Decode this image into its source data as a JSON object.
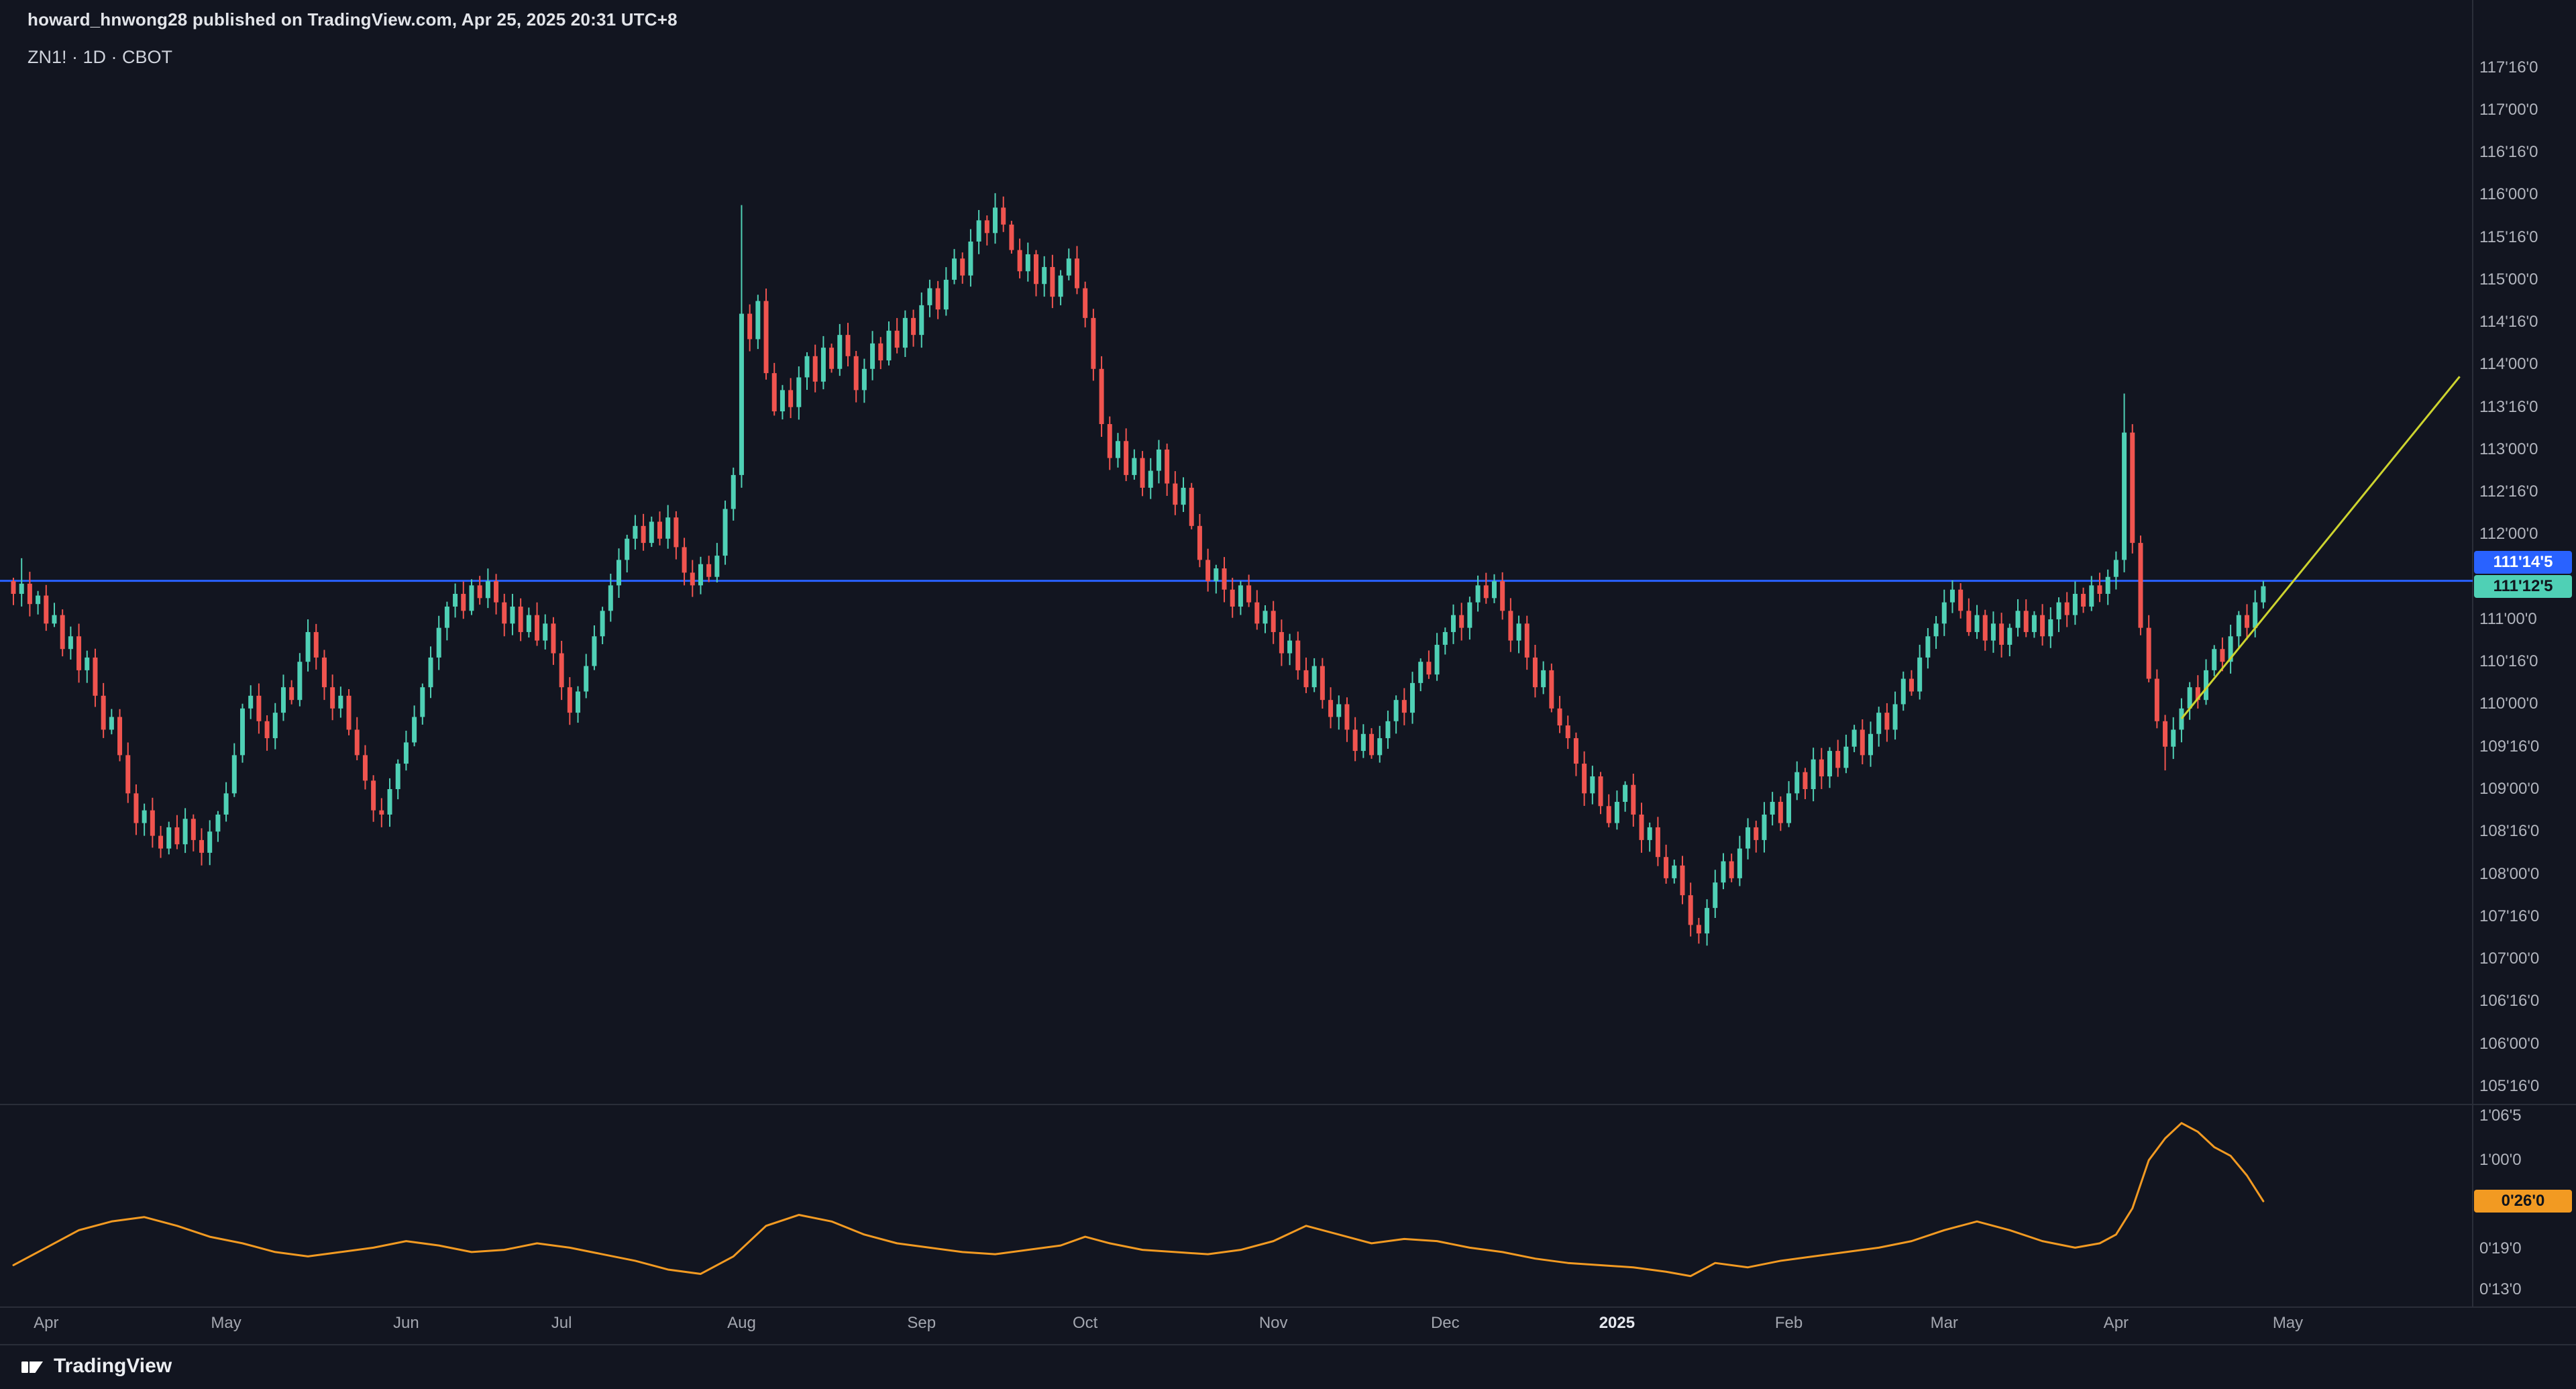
{
  "header": {
    "publish_line": "howard_hnwong28 published on TradingView.com, Apr 25, 2025 20:31 UTC+8",
    "symbol_line": "ZN1! · 1D · CBOT"
  },
  "footer": {
    "brand": "TradingView"
  },
  "colors": {
    "background": "#121520",
    "up": "#4fd0b5",
    "down": "#f0544f",
    "hline_blue": "#2962ff",
    "trend_yellow": "#cdd42f",
    "indicator_orange": "#f29a22",
    "separator": "#2a2e39",
    "axis_text": "#b2b5be",
    "chip_blue_text": "#ffffff",
    "chip_dark_text": "#10141c"
  },
  "price_axis": {
    "labels": [
      {
        "text": "117'16'0",
        "price": 117.5
      },
      {
        "text": "117'00'0",
        "price": 117.0
      },
      {
        "text": "116'16'0",
        "price": 116.5
      },
      {
        "text": "116'00'0",
        "price": 116.0
      },
      {
        "text": "115'16'0",
        "price": 115.5
      },
      {
        "text": "115'00'0",
        "price": 115.0
      },
      {
        "text": "114'16'0",
        "price": 114.5
      },
      {
        "text": "114'00'0",
        "price": 114.0
      },
      {
        "text": "113'16'0",
        "price": 113.5
      },
      {
        "text": "113'00'0",
        "price": 113.0
      },
      {
        "text": "112'16'0",
        "price": 112.5
      },
      {
        "text": "112'00'0",
        "price": 112.0
      },
      {
        "text": "111'00'0",
        "price": 111.0
      },
      {
        "text": "110'16'0",
        "price": 110.5
      },
      {
        "text": "110'00'0",
        "price": 110.0
      },
      {
        "text": "109'16'0",
        "price": 109.5
      },
      {
        "text": "109'00'0",
        "price": 109.0
      },
      {
        "text": "108'16'0",
        "price": 108.5
      },
      {
        "text": "108'00'0",
        "price": 108.0
      },
      {
        "text": "107'16'0",
        "price": 107.5
      },
      {
        "text": "107'00'0",
        "price": 107.0
      },
      {
        "text": "106'16'0",
        "price": 106.5
      },
      {
        "text": "106'00'0",
        "price": 106.0
      },
      {
        "text": "105'16'0",
        "price": 105.5
      }
    ]
  },
  "indicator_axis": {
    "labels": [
      {
        "text": "1'06'5",
        "value": 1.2031
      },
      {
        "text": "1'00'0",
        "value": 1.0
      },
      {
        "text": "0'19'0",
        "value": 0.5938
      },
      {
        "text": "0'13'0",
        "value": 0.4063
      }
    ]
  },
  "time_axis": {
    "labels": [
      {
        "text": "Apr",
        "index": 4,
        "emphasis": false
      },
      {
        "text": "May",
        "index": 26,
        "emphasis": false
      },
      {
        "text": "Jun",
        "index": 48,
        "emphasis": false
      },
      {
        "text": "Jul",
        "index": 67,
        "emphasis": false
      },
      {
        "text": "Aug",
        "index": 89,
        "emphasis": false
      },
      {
        "text": "Sep",
        "index": 111,
        "emphasis": false
      },
      {
        "text": "Oct",
        "index": 131,
        "emphasis": false
      },
      {
        "text": "Nov",
        "index": 154,
        "emphasis": false
      },
      {
        "text": "Dec",
        "index": 175,
        "emphasis": false
      },
      {
        "text": "2025",
        "index": 196,
        "emphasis": true
      },
      {
        "text": "Feb",
        "index": 217,
        "emphasis": false
      },
      {
        "text": "Mar",
        "index": 236,
        "emphasis": false
      },
      {
        "text": "Apr",
        "index": 257,
        "emphasis": false
      },
      {
        "text": "May",
        "index": 278,
        "emphasis": false
      }
    ]
  },
  "chart_data": {
    "type": "candlestick",
    "symbol": "ZN1!",
    "interval": "1D",
    "exchange": "CBOT",
    "main": {
      "ylim": [
        105.285,
        117.75
      ],
      "first_open": 111.45,
      "closes": [
        111.3,
        111.42,
        111.18,
        111.28,
        110.95,
        111.05,
        110.65,
        110.8,
        110.4,
        110.55,
        110.1,
        109.7,
        109.85,
        109.4,
        108.95,
        108.6,
        108.75,
        108.45,
        108.3,
        108.55,
        108.35,
        108.65,
        108.4,
        108.25,
        108.5,
        108.7,
        108.95,
        109.4,
        109.95,
        110.1,
        109.8,
        109.6,
        109.9,
        110.2,
        110.05,
        110.5,
        110.85,
        110.55,
        110.2,
        109.95,
        110.1,
        109.7,
        109.4,
        109.1,
        108.75,
        108.7,
        109.0,
        109.3,
        109.55,
        109.85,
        110.2,
        110.55,
        110.9,
        111.15,
        111.3,
        111.1,
        111.4,
        111.25,
        111.45,
        111.2,
        110.95,
        111.15,
        110.85,
        111.05,
        110.75,
        110.95,
        110.6,
        110.2,
        109.9,
        110.15,
        110.45,
        110.8,
        111.1,
        111.4,
        111.7,
        111.95,
        112.1,
        111.9,
        112.15,
        111.95,
        112.2,
        111.85,
        111.55,
        111.4,
        111.65,
        111.5,
        111.75,
        112.3,
        112.7,
        114.6,
        114.3,
        114.75,
        113.9,
        113.45,
        113.7,
        113.5,
        113.85,
        114.1,
        113.8,
        114.2,
        113.95,
        114.35,
        114.1,
        113.7,
        113.95,
        114.25,
        114.05,
        114.4,
        114.2,
        114.55,
        114.35,
        114.7,
        114.9,
        114.65,
        115.0,
        115.25,
        115.05,
        115.45,
        115.7,
        115.55,
        115.85,
        115.65,
        115.35,
        115.1,
        115.3,
        114.95,
        115.15,
        114.8,
        115.05,
        115.25,
        114.9,
        114.55,
        113.95,
        113.3,
        112.9,
        113.1,
        112.7,
        112.9,
        112.55,
        112.75,
        113.0,
        112.6,
        112.35,
        112.55,
        112.1,
        111.7,
        111.45,
        111.6,
        111.35,
        111.15,
        111.4,
        111.2,
        110.95,
        111.1,
        110.85,
        110.6,
        110.75,
        110.4,
        110.2,
        110.45,
        110.05,
        109.85,
        110.0,
        109.7,
        109.45,
        109.65,
        109.4,
        109.6,
        109.8,
        110.05,
        109.9,
        110.25,
        110.5,
        110.35,
        110.7,
        110.85,
        111.05,
        110.9,
        111.2,
        111.4,
        111.25,
        111.45,
        111.1,
        110.75,
        110.95,
        110.55,
        110.2,
        110.4,
        109.95,
        109.75,
        109.6,
        109.3,
        108.95,
        109.15,
        108.8,
        108.6,
        108.85,
        109.05,
        108.7,
        108.4,
        108.55,
        108.2,
        107.95,
        108.1,
        107.75,
        107.4,
        107.3,
        107.6,
        107.9,
        108.15,
        107.95,
        108.3,
        108.55,
        108.4,
        108.7,
        108.85,
        108.6,
        108.95,
        109.2,
        109.0,
        109.35,
        109.15,
        109.45,
        109.25,
        109.5,
        109.7,
        109.4,
        109.65,
        109.9,
        109.7,
        110.0,
        110.3,
        110.15,
        110.55,
        110.8,
        110.95,
        111.2,
        111.35,
        111.1,
        110.85,
        111.05,
        110.75,
        110.95,
        110.7,
        110.9,
        111.1,
        110.85,
        111.05,
        110.8,
        111.0,
        111.2,
        111.05,
        111.3,
        111.15,
        111.4,
        111.3,
        111.5,
        111.7,
        113.2,
        111.9,
        110.9,
        110.3,
        109.8,
        109.5,
        109.7,
        109.95,
        110.2,
        110.05,
        110.4,
        110.65,
        110.5,
        110.8,
        111.05,
        110.9,
        111.2,
        111.39
      ],
      "wick_overrides": {
        "1": {
          "high": 111.72
        },
        "89": {
          "high": 115.88
        },
        "120": {
          "high": 116.02
        },
        "206": {
          "low": 107.18
        },
        "258": {
          "high": 113.66
        },
        "263": {
          "low": 109.22
        }
      },
      "hline": {
        "price": 111.4531,
        "label": "111'14'5"
      },
      "last_price": {
        "value": 111.3906,
        "label": "111'12'5"
      },
      "trendline": {
        "start_index": 265,
        "start_price": 109.83,
        "end_index": 299,
        "end_price": 113.86
      }
    },
    "indicator": {
      "type": "line",
      "ylim": [
        0.328,
        1.255
      ],
      "points": [
        [
          0,
          0.52
        ],
        [
          4,
          0.6
        ],
        [
          8,
          0.68
        ],
        [
          12,
          0.72
        ],
        [
          16,
          0.74
        ],
        [
          20,
          0.7
        ],
        [
          24,
          0.65
        ],
        [
          28,
          0.62
        ],
        [
          32,
          0.58
        ],
        [
          36,
          0.56
        ],
        [
          40,
          0.58
        ],
        [
          44,
          0.6
        ],
        [
          48,
          0.63
        ],
        [
          52,
          0.61
        ],
        [
          56,
          0.58
        ],
        [
          60,
          0.59
        ],
        [
          64,
          0.62
        ],
        [
          68,
          0.6
        ],
        [
          72,
          0.57
        ],
        [
          76,
          0.54
        ],
        [
          80,
          0.5
        ],
        [
          84,
          0.48
        ],
        [
          88,
          0.56
        ],
        [
          92,
          0.7
        ],
        [
          96,
          0.75
        ],
        [
          100,
          0.72
        ],
        [
          104,
          0.66
        ],
        [
          108,
          0.62
        ],
        [
          112,
          0.6
        ],
        [
          116,
          0.58
        ],
        [
          120,
          0.57
        ],
        [
          124,
          0.59
        ],
        [
          128,
          0.61
        ],
        [
          131,
          0.65
        ],
        [
          134,
          0.62
        ],
        [
          138,
          0.59
        ],
        [
          142,
          0.58
        ],
        [
          146,
          0.57
        ],
        [
          150,
          0.59
        ],
        [
          154,
          0.63
        ],
        [
          158,
          0.7
        ],
        [
          162,
          0.66
        ],
        [
          166,
          0.62
        ],
        [
          170,
          0.64
        ],
        [
          174,
          0.63
        ],
        [
          178,
          0.6
        ],
        [
          182,
          0.58
        ],
        [
          186,
          0.55
        ],
        [
          190,
          0.53
        ],
        [
          194,
          0.52
        ],
        [
          198,
          0.51
        ],
        [
          202,
          0.49
        ],
        [
          205,
          0.47
        ],
        [
          208,
          0.53
        ],
        [
          212,
          0.51
        ],
        [
          216,
          0.54
        ],
        [
          220,
          0.56
        ],
        [
          224,
          0.58
        ],
        [
          228,
          0.6
        ],
        [
          232,
          0.63
        ],
        [
          236,
          0.68
        ],
        [
          240,
          0.72
        ],
        [
          244,
          0.68
        ],
        [
          248,
          0.63
        ],
        [
          252,
          0.6
        ],
        [
          255,
          0.62
        ],
        [
          257,
          0.66
        ],
        [
          259,
          0.78
        ],
        [
          261,
          1.0
        ],
        [
          263,
          1.1
        ],
        [
          265,
          1.17
        ],
        [
          267,
          1.13
        ],
        [
          269,
          1.06
        ],
        [
          271,
          1.02
        ],
        [
          273,
          0.93
        ],
        [
          275,
          0.8125
        ]
      ],
      "last_value": 0.8125,
      "last_label": "0'26'0"
    }
  }
}
